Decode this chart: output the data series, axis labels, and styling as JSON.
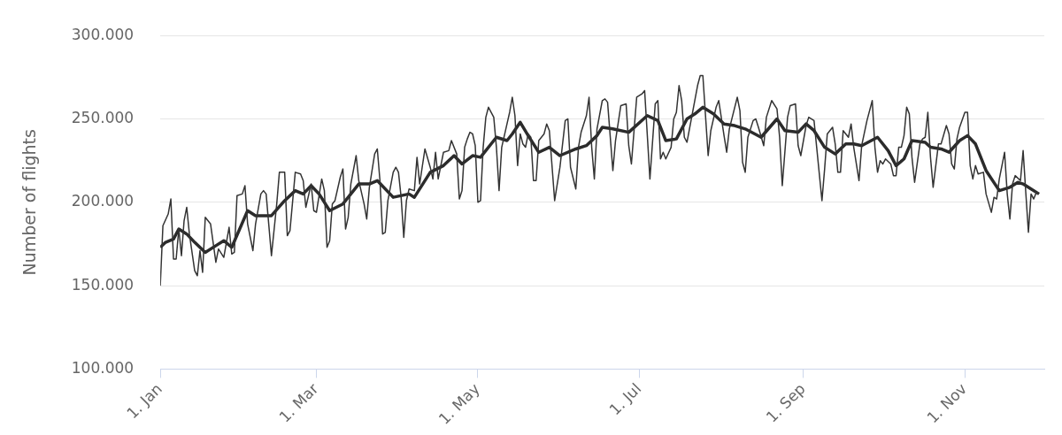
{
  "chart_data": {
    "type": "line",
    "ylabel": "Number of flights",
    "ylim": [
      100000,
      300000
    ],
    "yticks": [
      {
        "value": 100000,
        "label": "100.000"
      },
      {
        "value": 150000,
        "label": "150.000"
      },
      {
        "value": 200000,
        "label": "200.000"
      },
      {
        "value": 250000,
        "label": "250.000"
      },
      {
        "value": 300000,
        "label": "300.000"
      }
    ],
    "xlim": [
      "--01-01",
      "--12-01"
    ],
    "xticks": [
      {
        "value": "--01-01",
        "label": "1. Jan"
      },
      {
        "value": "--03-01",
        "label": "1. Mar"
      },
      {
        "value": "--05-01",
        "label": "1. May"
      },
      {
        "value": "--07-01",
        "label": "1. Jul"
      },
      {
        "value": "--09-01",
        "label": "1. Sep"
      },
      {
        "value": "--11-01",
        "label": "1. Nov"
      }
    ],
    "grid": "y",
    "legend": false,
    "marker": "none",
    "line_style": "solid",
    "series": [
      {
        "color": "#333333",
        "x": [
          "--01-01",
          "--01-02",
          "--01-04",
          "--01-05",
          "--01-06",
          "--01-07",
          "--01-08",
          "--01-09",
          "--01-10",
          "--01-11",
          "--01-12",
          "--01-14",
          "--01-15",
          "--01-16",
          "--01-17",
          "--01-18",
          "--01-20",
          "--01-22",
          "--01-23",
          "--01-25",
          "--01-27",
          "--01-28",
          "--01-29",
          "--01-30",
          "--02-01",
          "--02-02",
          "--02-03",
          "--02-05",
          "--02-06",
          "--02-08",
          "--02-09",
          "--02-10",
          "--02-12",
          "--02-14",
          "--02-15",
          "--02-17",
          "--02-18",
          "--02-19",
          "--02-21",
          "--02-23",
          "--02-24",
          "--02-25",
          "--02-27",
          "--02-28",
          "--03-01",
          "--03-03",
          "--03-04",
          "--03-05",
          "--03-06",
          "--03-07",
          "--03-08",
          "--03-10",
          "--03-11",
          "--03-12",
          "--03-13",
          "--03-14",
          "--03-16",
          "--03-17",
          "--03-19",
          "--03-20",
          "--03-21",
          "--03-23",
          "--03-24",
          "--03-25",
          "--03-26",
          "--03-27",
          "--03-28",
          "--03-30",
          "--03-31",
          "--04-01",
          "--04-02",
          "--04-03",
          "--04-04",
          "--04-05",
          "--04-07",
          "--04-08",
          "--04-09",
          "--04-11",
          "--04-13",
          "--04-14",
          "--04-15",
          "--04-16",
          "--04-18",
          "--04-20",
          "--04-21",
          "--04-23",
          "--04-24",
          "--04-25",
          "--04-26",
          "--04-27",
          "--04-28",
          "--04-29",
          "--04-30",
          "--05-01",
          "--05-02",
          "--05-03",
          "--05-04",
          "--05-05",
          "--05-07",
          "--05-08",
          "--05-09",
          "--05-10",
          "--05-12",
          "--05-13",
          "--05-14",
          "--05-15",
          "--05-16",
          "--05-17",
          "--05-18",
          "--05-19",
          "--05-20",
          "--05-21",
          "--05-22",
          "--05-23",
          "--05-24",
          "--05-25",
          "--05-26",
          "--05-27",
          "--05-28",
          "--05-30",
          "--06-01",
          "--06-03",
          "--06-04",
          "--06-05",
          "--06-07",
          "--06-08",
          "--06-09",
          "--06-11",
          "--06-12",
          "--06-13",
          "--06-14",
          "--06-15",
          "--06-17",
          "--06-18",
          "--06-19",
          "--06-21",
          "--06-22",
          "--06-24",
          "--06-26",
          "--06-27",
          "--06-28",
          "--06-30",
          "--07-02",
          "--07-03",
          "--07-05",
          "--07-07",
          "--07-08",
          "--07-09",
          "--07-10",
          "--07-11",
          "--07-13",
          "--07-14",
          "--07-15",
          "--07-16",
          "--07-17",
          "--07-18",
          "--07-19",
          "--07-21",
          "--07-23",
          "--07-24",
          "--07-25",
          "--07-27",
          "--07-28",
          "--07-30",
          "--07-31",
          "--08-02",
          "--08-03",
          "--08-04",
          "--08-07",
          "--08-08",
          "--08-09",
          "--08-10",
          "--08-11",
          "--08-13",
          "--08-14",
          "--08-15",
          "--08-17",
          "--08-18",
          "--08-20",
          "--08-22",
          "--08-23",
          "--08-24",
          "--08-26",
          "--08-27",
          "--08-29",
          "--08-30",
          "--08-31",
          "--09-02",
          "--09-03",
          "--09-05",
          "--09-06",
          "--09-08",
          "--09-09",
          "--09-10",
          "--09-12",
          "--09-13",
          "--09-14",
          "--09-15",
          "--09-16",
          "--09-18",
          "--09-19",
          "--09-20",
          "--09-22",
          "--09-23",
          "--09-25",
          "--09-27",
          "--09-28",
          "--09-29",
          "--09-30",
          "--10-01",
          "--10-02",
          "--10-04",
          "--10-05",
          "--10-06",
          "--10-07",
          "--10-08",
          "--10-09",
          "--10-10",
          "--10-11",
          "--10-12",
          "--10-13",
          "--10-15",
          "--10-16",
          "--10-17",
          "--10-18",
          "--10-19",
          "--10-20",
          "--10-22",
          "--10-23",
          "--10-25",
          "--10-26",
          "--10-27",
          "--10-28",
          "--10-29",
          "--10-30",
          "--11-01",
          "--11-02",
          "--11-03",
          "--11-04",
          "--11-05",
          "--11-06",
          "--11-08",
          "--11-09",
          "--11-11",
          "--11-12",
          "--11-13",
          "--11-14",
          "--11-16",
          "--11-17",
          "--11-18",
          "--11-19",
          "--11-20",
          "--11-22",
          "--11-23",
          "--11-24",
          "--11-25",
          "--11-26",
          "--11-27",
          "--11-28",
          "--11-29"
        ],
        "values": [
          150000,
          186000,
          193000,
          202000,
          166000,
          166000,
          184000,
          168000,
          189000,
          197000,
          181000,
          159000,
          156000,
          171000,
          158000,
          191000,
          187000,
          164000,
          172000,
          167000,
          185000,
          169000,
          170000,
          204000,
          205000,
          210000,
          187000,
          171000,
          187000,
          205000,
          207000,
          205000,
          168000,
          199000,
          218000,
          218000,
          180000,
          183000,
          218000,
          217000,
          213000,
          197000,
          211000,
          195000,
          194000,
          214000,
          207000,
          173000,
          177000,
          199000,
          201000,
          215000,
          220000,
          184000,
          191000,
          211000,
          228000,
          213000,
          199000,
          190000,
          209000,
          229000,
          232000,
          213000,
          181000,
          182000,
          201000,
          218000,
          221000,
          218000,
          203000,
          179000,
          201000,
          208000,
          207000,
          227000,
          211000,
          232000,
          221000,
          214000,
          230000,
          214000,
          230000,
          231000,
          237000,
          229000,
          202000,
          207000,
          233000,
          238000,
          242000,
          241000,
          234000,
          200000,
          201000,
          233000,
          251000,
          257000,
          251000,
          233000,
          207000,
          233000,
          247000,
          254000,
          263000,
          252000,
          222000,
          241000,
          235000,
          233000,
          241000,
          239000,
          213000,
          213000,
          237000,
          239000,
          241000,
          247000,
          243000,
          201000,
          221000,
          249000,
          250000,
          221000,
          208000,
          233000,
          242000,
          252000,
          263000,
          233000,
          214000,
          244000,
          261000,
          262000,
          260000,
          219000,
          237000,
          258000,
          259000,
          234000,
          223000,
          263000,
          265000,
          267000,
          214000,
          259000,
          261000,
          226000,
          230000,
          226000,
          233000,
          250000,
          254000,
          270000,
          261000,
          239000,
          236000,
          253000,
          270000,
          276000,
          276000,
          228000,
          243000,
          257000,
          261000,
          240000,
          230000,
          244000,
          263000,
          255000,
          224000,
          218000,
          239000,
          249000,
          250000,
          245000,
          234000,
          251000,
          261000,
          256000,
          239000,
          210000,
          251000,
          258000,
          259000,
          234000,
          228000,
          246000,
          251000,
          249000,
          233000,
          201000,
          220000,
          241000,
          245000,
          235000,
          218000,
          218000,
          243000,
          239000,
          247000,
          233000,
          213000,
          234000,
          249000,
          261000,
          233000,
          218000,
          225000,
          223000,
          226000,
          223000,
          216000,
          216000,
          233000,
          233000,
          240000,
          257000,
          253000,
          227000,
          212000,
          235000,
          238000,
          239000,
          254000,
          227000,
          209000,
          235000,
          235000,
          246000,
          241000,
          223000,
          220000,
          238000,
          245000,
          254000,
          254000,
          222000,
          214000,
          222000,
          217000,
          218000,
          205000,
          194000,
          203000,
          202000,
          214000,
          230000,
          205000,
          190000,
          211000,
          216000,
          213000,
          231000,
          206000,
          182000,
          205000,
          202000,
          206000,
          205000
        ]
      },
      {
        "color": "#2b2b2b",
        "x": [
          "--01-01",
          "--01-03",
          "--01-06",
          "--01-08",
          "--01-11",
          "--01-14",
          "--01-18",
          "--01-22",
          "--01-25",
          "--01-28",
          "--01-31",
          "--02-03",
          "--02-06",
          "--02-09",
          "--02-12",
          "--02-17",
          "--02-21",
          "--02-24",
          "--02-27",
          "--03-02",
          "--03-06",
          "--03-11",
          "--03-17",
          "--03-21",
          "--03-24",
          "--03-30",
          "--04-05",
          "--04-07",
          "--04-13",
          "--04-18",
          "--04-22",
          "--04-25",
          "--04-29",
          "--05-02",
          "--05-08",
          "--05-12",
          "--05-14",
          "--05-17",
          "--05-20",
          "--05-24",
          "--05-28",
          "--06-01",
          "--06-07",
          "--06-11",
          "--06-15",
          "--06-17",
          "--06-21",
          "--06-27",
          "--07-04",
          "--07-08",
          "--07-11",
          "--07-15",
          "--07-19",
          "--07-22",
          "--07-25",
          "--07-29",
          "--08-02",
          "--08-06",
          "--08-10",
          "--08-16",
          "--08-22",
          "--08-25",
          "--08-30",
          "--09-02",
          "--09-05",
          "--09-09",
          "--09-13",
          "--09-17",
          "--09-20",
          "--09-23",
          "--09-29",
          "--10-03",
          "--10-06",
          "--10-09",
          "--10-12",
          "--10-17",
          "--10-19",
          "--10-23",
          "--10-26",
          "--10-30",
          "--11-02",
          "--11-05",
          "--11-09",
          "--11-14",
          "--11-18",
          "--11-21",
          "--11-23",
          "--11-26",
          "--11-29"
        ],
        "values": [
          173000,
          176000,
          178000,
          184000,
          181000,
          176000,
          170000,
          174000,
          177000,
          173000,
          184000,
          195000,
          192000,
          192000,
          192000,
          201000,
          207000,
          205000,
          210000,
          205000,
          195000,
          199000,
          211000,
          211000,
          213000,
          203000,
          205000,
          203000,
          218000,
          222000,
          228000,
          223000,
          228000,
          227000,
          239000,
          237000,
          241000,
          248000,
          240000,
          230000,
          233000,
          228000,
          232000,
          234000,
          240000,
          245000,
          244000,
          242000,
          252000,
          249000,
          237000,
          238000,
          250000,
          253000,
          257000,
          253000,
          247000,
          246000,
          244000,
          239000,
          250000,
          243000,
          242000,
          247000,
          243000,
          233000,
          229000,
          235000,
          235000,
          234000,
          239000,
          231000,
          222000,
          226000,
          237000,
          236000,
          233000,
          232000,
          230000,
          237000,
          240000,
          235000,
          219000,
          207000,
          209000,
          212000,
          211000,
          208000,
          205000
        ]
      }
    ]
  }
}
